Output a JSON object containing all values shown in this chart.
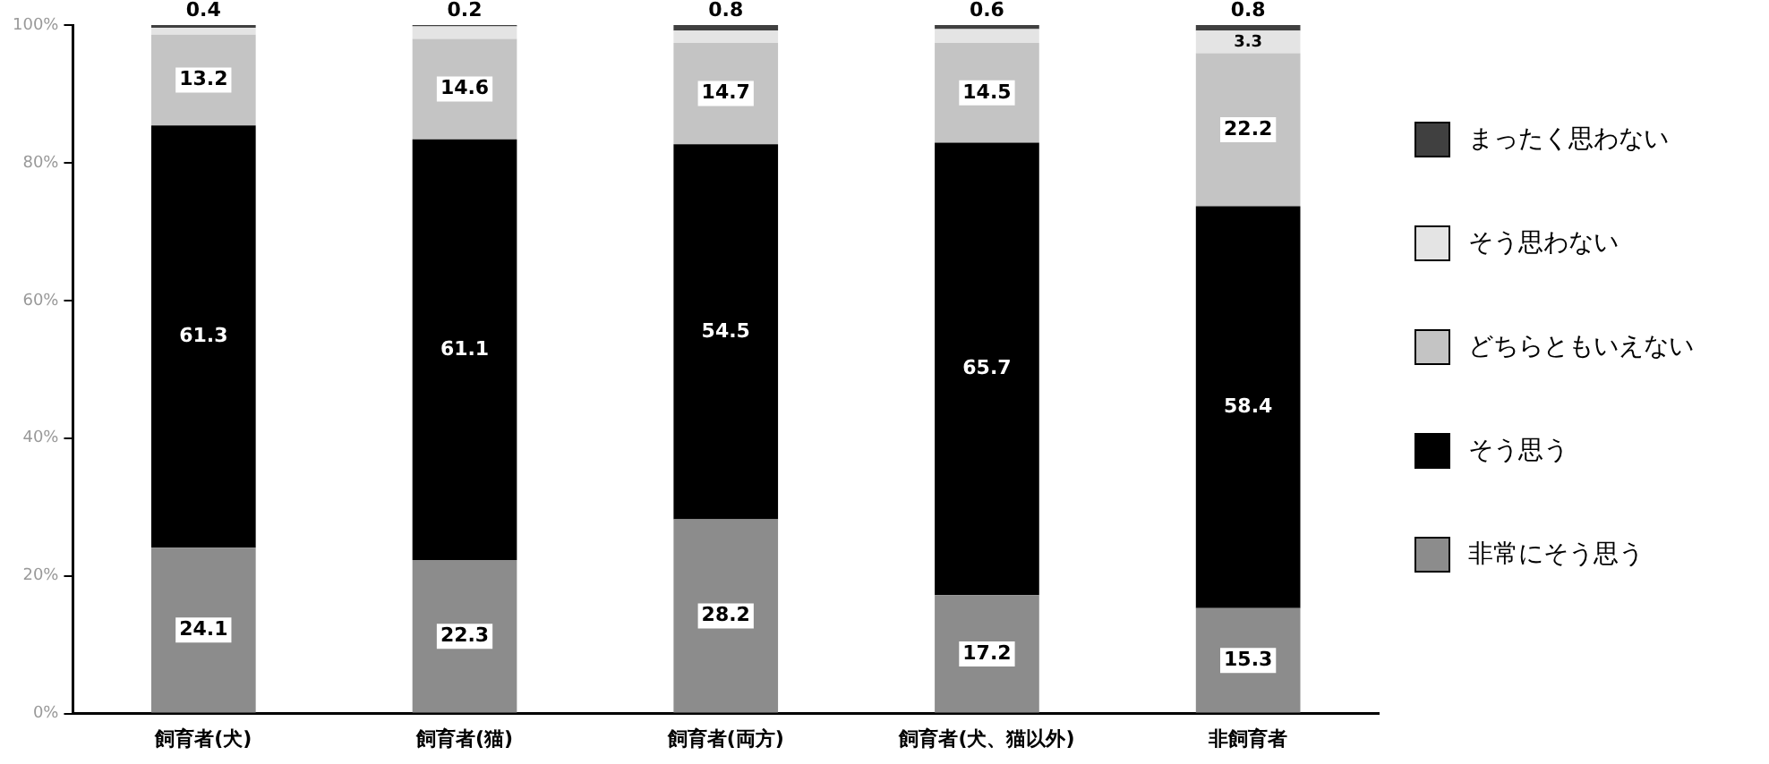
{
  "chart_data": {
    "type": "bar",
    "stacked": true,
    "categories": [
      "飼育者(犬)",
      "飼育者(猫)",
      "飼育者(両方)",
      "飼育者(犬、猫以外)",
      "非飼育者"
    ],
    "series": [
      {
        "name": "非常にそう思う",
        "color": "#8c8c8c",
        "values": [
          24.1,
          22.3,
          28.2,
          17.2,
          15.3
        ],
        "value_labels": [
          "24.1",
          "22.3",
          "28.2",
          "17.2",
          "15.3"
        ]
      },
      {
        "name": "そう思う",
        "color": "#000000",
        "values": [
          61.3,
          61.1,
          54.5,
          65.7,
          58.4
        ],
        "value_labels": [
          "61.3",
          "61.1",
          "54.5",
          "65.7",
          "58.4"
        ]
      },
      {
        "name": "どちらともいえない",
        "color": "#c4c4c4",
        "values": [
          13.2,
          14.6,
          14.7,
          14.5,
          22.2
        ],
        "value_labels": [
          "13.2",
          "14.6",
          "14.7",
          "14.5",
          "22.2"
        ]
      },
      {
        "name": "そう思わない",
        "color": "#e4e4e4",
        "values": [
          1.0,
          1.8,
          1.8,
          2.0,
          3.3
        ],
        "value_labels": [
          null,
          null,
          null,
          null,
          "3.3"
        ]
      },
      {
        "name": "まったく思わない",
        "color": "#404040",
        "values": [
          0.4,
          0.2,
          0.8,
          0.6,
          0.8
        ],
        "value_labels": [
          "0.4",
          "0.2",
          "0.8",
          "0.6",
          "0.8"
        ]
      }
    ],
    "ylim": [
      0,
      100
    ],
    "yticks": [
      {
        "value": 0,
        "label": "0%"
      },
      {
        "value": 20,
        "label": "20%"
      },
      {
        "value": 40,
        "label": "40%"
      },
      {
        "value": 60,
        "label": "60%"
      },
      {
        "value": 80,
        "label": "80%"
      },
      {
        "value": 100,
        "label": "100%"
      }
    ],
    "grid": false,
    "legend": "right"
  }
}
